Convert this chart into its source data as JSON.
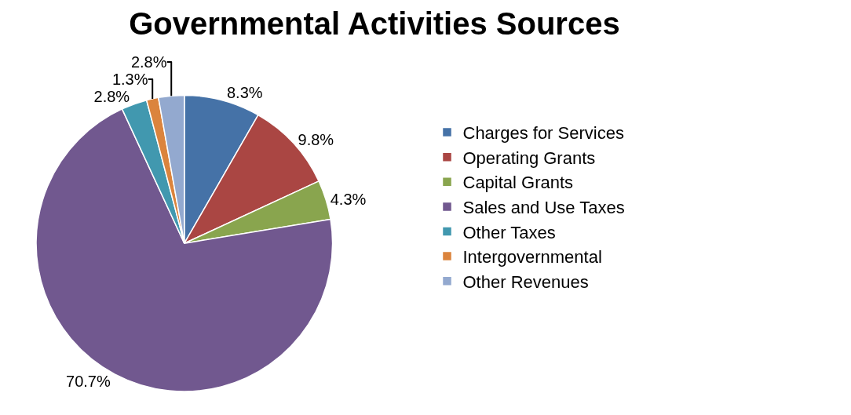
{
  "chart_data": {
    "type": "pie",
    "title": "Governmental Activities Sources",
    "categories": [
      "Charges for Services",
      "Operating Grants",
      "Capital Grants",
      "Sales and Use Taxes",
      "Other Taxes",
      "Intergovernmental",
      "Other Revenues"
    ],
    "values": [
      8.3,
      9.8,
      4.3,
      70.7,
      2.8,
      1.3,
      2.8
    ],
    "value_labels": [
      "8.3%",
      "9.8%",
      "4.3%",
      "70.7%",
      "2.8%",
      "1.3%",
      "2.8%"
    ],
    "colors": [
      "#4572a7",
      "#aa4643",
      "#89a54e",
      "#71588f",
      "#4198af",
      "#db843d",
      "#93a9cf"
    ],
    "legend": "right"
  }
}
